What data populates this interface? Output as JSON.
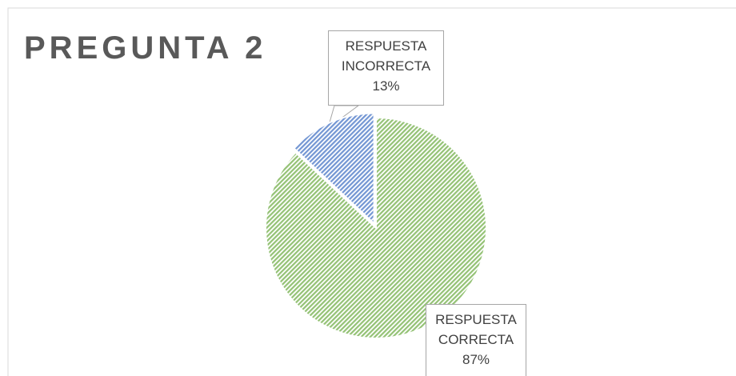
{
  "chart_data": {
    "type": "pie",
    "title": "PREGUNTA 2",
    "categories": [
      "RESPUESTA CORRECTA",
      "RESPUESTA INCORRECTA"
    ],
    "values": [
      87,
      13
    ],
    "value_labels": [
      "87%",
      "13%"
    ],
    "colors": [
      "#70ad47",
      "#4472c4"
    ]
  }
}
